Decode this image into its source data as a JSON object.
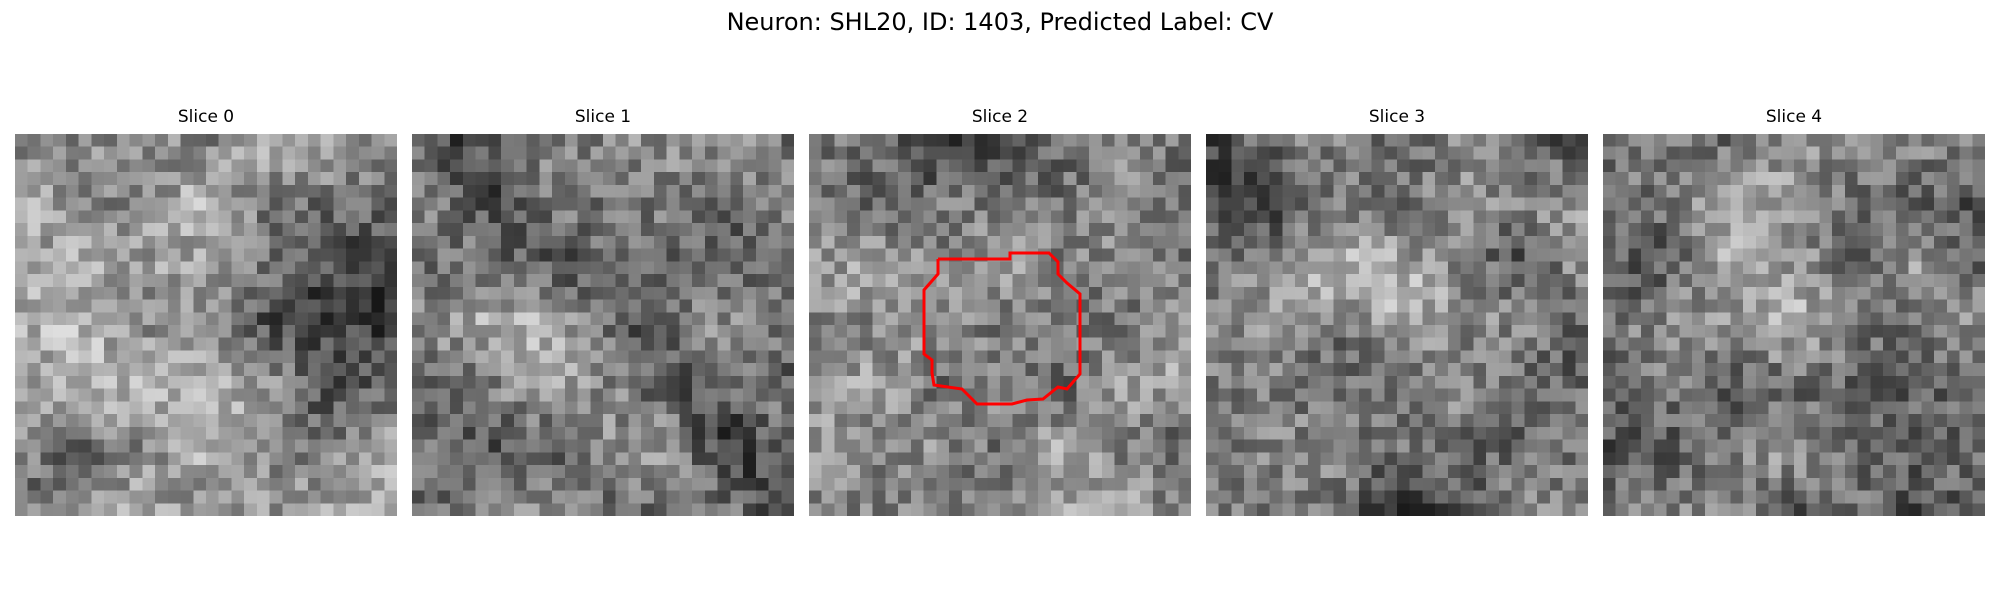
{
  "figure": {
    "title": "Neuron: SHL20, ID: 1403, Predicted Label: CV"
  },
  "slices": [
    {
      "label": "Slice 0",
      "seed": 11,
      "pattern": "bright-center-dark-right",
      "has_roi": false
    },
    {
      "label": "Slice 1",
      "seed": 23,
      "pattern": "mottled-dark-diagonal",
      "has_roi": false
    },
    {
      "label": "Slice 2",
      "seed": 37,
      "pattern": "dark-top-center-gray",
      "has_roi": true
    },
    {
      "label": "Slice 3",
      "seed": 41,
      "pattern": "dark-top-left-bright-band",
      "has_roi": false
    },
    {
      "label": "Slice 4",
      "seed": 59,
      "pattern": "bright-center-dark-corners",
      "has_roi": false
    }
  ],
  "roi": {
    "color": "#ff0000",
    "label": "roi-contour"
  },
  "image": {
    "grid_size": 30,
    "colormap": "gray"
  }
}
